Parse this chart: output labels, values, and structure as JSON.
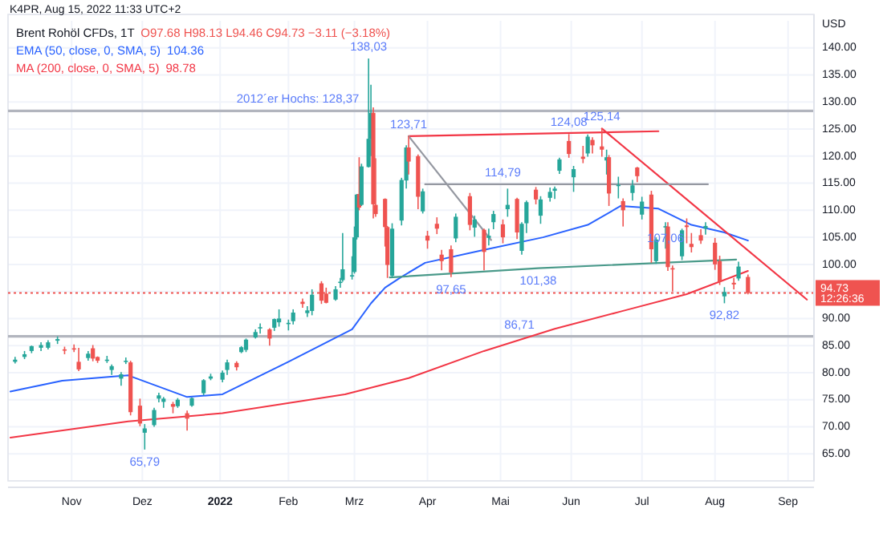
{
  "chart_data": {
    "type": "candlestick",
    "title": "Brent Rohöl CFDs, 1T",
    "subtitle": "K4PR, Aug 15, 2022 11:33 UTC+2",
    "ylabel": "USD",
    "x": [
      "2021-10-08",
      "2021-10-12",
      "2021-10-15",
      "2021-10-19",
      "2021-10-22",
      "2021-10-26",
      "2021-10-29",
      "2021-11-02",
      "2021-11-04",
      "2021-11-08",
      "2021-11-10",
      "2021-11-12",
      "2021-11-16",
      "2021-11-18",
      "2021-11-22",
      "2021-11-24",
      "2021-11-26",
      "2021-11-30",
      "2021-12-02",
      "2021-12-06",
      "2021-12-08",
      "2021-12-10",
      "2021-12-14",
      "2021-12-16",
      "2021-12-20",
      "2021-12-22",
      "2021-12-27",
      "2021-12-30",
      "2022-01-04",
      "2022-01-06",
      "2022-01-10",
      "2022-01-12",
      "2022-01-14",
      "2022-01-18",
      "2022-01-20",
      "2022-01-24",
      "2022-01-26",
      "2022-01-28",
      "2022-02-01",
      "2022-02-03",
      "2022-02-07",
      "2022-02-09",
      "2022-02-11",
      "2022-02-15",
      "2022-02-17",
      "2022-02-21",
      "2022-02-23",
      "2022-02-24",
      "2022-02-28",
      "2022-03-01",
      "2022-03-02",
      "2022-03-03",
      "2022-03-04",
      "2022-03-07",
      "2022-03-08",
      "2022-03-09",
      "2022-03-10",
      "2022-03-14",
      "2022-03-15",
      "2022-03-17",
      "2022-03-21",
      "2022-03-23",
      "2022-03-24",
      "2022-03-28",
      "2022-03-30",
      "2022-04-01",
      "2022-04-05",
      "2022-04-07",
      "2022-04-11",
      "2022-04-13",
      "2022-04-19",
      "2022-04-21",
      "2022-04-25",
      "2022-04-27",
      "2022-04-29",
      "2022-05-03",
      "2022-05-05",
      "2022-05-09",
      "2022-05-11",
      "2022-05-13",
      "2022-05-17",
      "2022-05-19",
      "2022-05-23",
      "2022-05-25",
      "2022-05-27",
      "2022-05-31",
      "2022-06-02",
      "2022-06-06",
      "2022-06-08",
      "2022-06-10",
      "2022-06-14",
      "2022-06-16",
      "2022-06-17",
      "2022-06-21",
      "2022-06-23",
      "2022-06-27",
      "2022-06-29",
      "2022-07-01",
      "2022-07-05",
      "2022-07-07",
      "2022-07-11",
      "2022-07-12",
      "2022-07-14",
      "2022-07-18",
      "2022-07-20",
      "2022-07-22",
      "2022-07-26",
      "2022-07-28",
      "2022-08-01",
      "2022-08-03",
      "2022-08-05",
      "2022-08-09",
      "2022-08-11",
      "2022-08-15"
    ],
    "ohlc": [
      [
        82.0,
        82.9,
        81.7,
        82.4
      ],
      [
        82.9,
        84.0,
        82.5,
        83.4
      ],
      [
        84.0,
        85.0,
        83.6,
        84.9
      ],
      [
        84.6,
        85.6,
        84.0,
        85.1
      ],
      [
        84.6,
        86.0,
        84.3,
        85.6
      ],
      [
        85.9,
        86.7,
        85.3,
        86.2
      ],
      [
        84.3,
        84.8,
        83.4,
        84.1
      ],
      [
        84.5,
        85.2,
        83.8,
        84.3
      ],
      [
        82.0,
        84.6,
        80.3,
        80.6
      ],
      [
        82.7,
        84.0,
        82.2,
        83.5
      ],
      [
        84.5,
        85.1,
        82.1,
        82.6
      ],
      [
        82.9,
        83.0,
        81.8,
        82.2
      ],
      [
        82.2,
        83.1,
        81.8,
        82.4
      ],
      [
        80.5,
        81.5,
        79.6,
        81.2
      ],
      [
        78.9,
        80.1,
        77.6,
        79.7
      ],
      [
        82.2,
        82.8,
        81.6,
        82.2
      ],
      [
        81.9,
        82.2,
        72.1,
        72.7
      ],
      [
        73.9,
        75.2,
        70.1,
        70.6
      ],
      [
        68.9,
        70.5,
        65.79,
        69.7
      ],
      [
        70.3,
        73.5,
        70.0,
        73.1
      ],
      [
        75.2,
        76.3,
        74.5,
        75.8
      ],
      [
        74.6,
        75.5,
        73.5,
        75.2
      ],
      [
        74.2,
        74.6,
        72.5,
        73.7
      ],
      [
        73.8,
        75.3,
        73.5,
        75.0
      ],
      [
        72.5,
        73.0,
        69.3,
        71.5
      ],
      [
        73.9,
        75.4,
        73.7,
        75.3
      ],
      [
        76.2,
        78.8,
        75.8,
        78.6
      ],
      [
        78.9,
        79.8,
        78.6,
        79.3
      ],
      [
        78.7,
        80.4,
        78.2,
        80.0
      ],
      [
        80.5,
        82.4,
        79.6,
        81.9
      ],
      [
        81.8,
        82.1,
        80.4,
        81.0
      ],
      [
        83.8,
        84.9,
        83.6,
        84.7
      ],
      [
        84.2,
        86.3,
        83.8,
        86.1
      ],
      [
        86.5,
        88.0,
        86.3,
        87.5
      ],
      [
        88.4,
        89.1,
        87.2,
        88.4
      ],
      [
        88.0,
        88.2,
        85.0,
        86.3
      ],
      [
        88.3,
        90.0,
        87.7,
        89.9
      ],
      [
        89.3,
        91.7,
        88.5,
        90.0
      ],
      [
        89.2,
        89.8,
        87.8,
        89.2
      ],
      [
        89.5,
        91.7,
        88.9,
        91.1
      ],
      [
        93.1,
        93.7,
        92.0,
        92.7
      ],
      [
        91.0,
        92.3,
        90.3,
        91.5
      ],
      [
        91.4,
        95.4,
        90.6,
        94.4
      ],
      [
        96.5,
        96.9,
        92.7,
        93.3
      ],
      [
        94.6,
        95.7,
        92.8,
        92.9
      ],
      [
        93.5,
        96.0,
        93.3,
        95.4
      ],
      [
        96.8,
        97.5,
        95.7,
        96.8
      ],
      [
        97.1,
        105.8,
        96.8,
        99.1
      ],
      [
        97.9,
        101.5,
        97.2,
        98.0
      ],
      [
        98.6,
        107.0,
        98.3,
        105.0
      ],
      [
        105.0,
        113.0,
        104.6,
        112.9
      ],
      [
        113.0,
        119.8,
        110.0,
        110.5
      ],
      [
        111.0,
        118.6,
        110.8,
        118.1
      ],
      [
        118.0,
        138.03,
        117.9,
        123.2
      ],
      [
        123.2,
        133.2,
        120.0,
        128.0
      ],
      [
        128.0,
        129.0,
        108.5,
        111.1
      ],
      [
        111.0,
        119.6,
        108.8,
        109.3
      ],
      [
        112.1,
        112.2,
        103.3,
        106.9
      ],
      [
        106.9,
        107.1,
        97.5,
        99.9
      ],
      [
        97.9,
        107.6,
        97.5,
        106.6
      ],
      [
        108.1,
        116.0,
        107.2,
        115.6
      ],
      [
        115.5,
        122.0,
        114.0,
        121.6
      ],
      [
        121.6,
        123.71,
        116.6,
        119.0
      ],
      [
        120.0,
        120.3,
        110.2,
        112.5
      ],
      [
        109.8,
        114.0,
        109.4,
        113.5
      ],
      [
        105.3,
        106.2,
        102.9,
        104.4
      ],
      [
        107.5,
        108.7,
        105.6,
        106.6
      ],
      [
        101.8,
        102.7,
        98.9,
        100.6
      ],
      [
        102.8,
        103.5,
        97.65,
        98.5
      ],
      [
        104.8,
        109.4,
        104.1,
        108.8
      ],
      [
        112.6,
        113.2,
        106.3,
        107.3
      ],
      [
        106.8,
        109.0,
        105.1,
        108.3
      ],
      [
        106.4,
        106.6,
        98.9,
        102.3
      ],
      [
        104.9,
        106.6,
        103.5,
        105.3
      ],
      [
        107.8,
        109.9,
        106.5,
        109.3
      ],
      [
        107.4,
        108.3,
        103.9,
        105.0
      ],
      [
        110.2,
        114.0,
        108.8,
        111.0
      ],
      [
        112.1,
        112.3,
        104.7,
        105.9
      ],
      [
        102.5,
        107.8,
        101.8,
        107.5
      ],
      [
        107.6,
        111.8,
        105.8,
        111.5
      ],
      [
        113.8,
        114.3,
        111.1,
        112.0
      ],
      [
        109.0,
        112.6,
        107.5,
        112.0
      ],
      [
        112.3,
        114.2,
        111.6,
        113.4
      ],
      [
        113.6,
        114.4,
        112.1,
        114.0
      ],
      [
        117.3,
        119.7,
        116.7,
        119.4
      ],
      [
        122.8,
        124.08,
        119.7,
        120.4
      ],
      [
        116.1,
        118.2,
        113.4,
        117.6
      ],
      [
        119.9,
        121.9,
        118.7,
        119.5
      ],
      [
        120.5,
        124.0,
        119.9,
        123.6
      ],
      [
        123.0,
        123.5,
        120.5,
        122.0
      ],
      [
        121.8,
        125.14,
        119.9,
        121.2
      ],
      [
        119.2,
        121.2,
        116.6,
        119.8
      ],
      [
        119.8,
        120.2,
        110.8,
        113.1
      ],
      [
        114.5,
        116.2,
        112.2,
        114.7
      ],
      [
        111.7,
        112.2,
        107.0,
        110.0
      ],
      [
        113.2,
        115.6,
        111.8,
        114.6
      ],
      [
        117.9,
        118.0,
        115.2,
        116.3
      ],
      [
        109.2,
        112.5,
        108.3,
        111.6
      ],
      [
        112.9,
        113.6,
        100.3,
        102.8
      ],
      [
        100.6,
        105.0,
        100.1,
        104.6
      ],
      [
        107.0,
        107.8,
        102.9,
        107.06
      ],
      [
        107.0,
        107.8,
        98.8,
        99.5
      ],
      [
        99.3,
        99.8,
        95.0,
        99.1
      ],
      [
        101.5,
        106.6,
        100.8,
        106.3
      ],
      [
        107.2,
        108.5,
        103.9,
        106.9
      ],
      [
        103.8,
        105.8,
        102.2,
        103.2
      ],
      [
        105.4,
        106.5,
        103.8,
        104.4
      ],
      [
        106.6,
        107.8,
        105.5,
        107.1
      ],
      [
        104.0,
        104.9,
        99.0,
        100.0
      ],
      [
        100.6,
        101.6,
        96.2,
        96.8
      ],
      [
        94.1,
        95.8,
        92.82,
        94.9
      ],
      [
        96.6,
        97.5,
        95.4,
        96.3
      ],
      [
        97.4,
        100.5,
        97.0,
        99.6
      ],
      [
        97.68,
        98.13,
        94.46,
        94.73
      ]
    ],
    "series": [
      {
        "name": "EMA (50, close, 0, SMA, 5)",
        "type": "line",
        "color": "#2962ff",
        "x": [
          "2021-10-06",
          "2021-10-28",
          "2021-11-25",
          "2021-12-20",
          "2022-01-04",
          "2022-02-01",
          "2022-02-28",
          "2022-03-08",
          "2022-03-14",
          "2022-03-21",
          "2022-03-31",
          "2022-04-25",
          "2022-05-20",
          "2022-06-08",
          "2022-06-22",
          "2022-07-08",
          "2022-07-22",
          "2022-08-05",
          "2022-08-15"
        ],
        "values": [
          76.5,
          78.5,
          79.5,
          75.5,
          76.0,
          82.0,
          88.0,
          92.8,
          95.7,
          97.7,
          100.3,
          102.7,
          105.0,
          107.3,
          110.8,
          110.3,
          107.3,
          105.9,
          104.4
        ]
      },
      {
        "name": "MA (200, close, 0, SMA, 5)",
        "type": "line",
        "color": "#f23645",
        "x": [
          "2021-10-06",
          "2021-11-25",
          "2022-01-04",
          "2022-02-25",
          "2022-03-24",
          "2022-04-25",
          "2022-05-25",
          "2022-06-22",
          "2022-07-20",
          "2022-08-15"
        ],
        "values": [
          68.0,
          71.0,
          72.5,
          76.0,
          79.0,
          84.0,
          88.1,
          91.3,
          94.5,
          98.8
        ]
      },
      {
        "type": "line",
        "color": "#f23645",
        "x": [
          "2022-03-24",
          "2022-07-08"
        ],
        "values": [
          123.7,
          124.6
        ]
      },
      {
        "type": "line",
        "color": "#f23645",
        "x": [
          "2022-06-14",
          "2022-09-09"
        ],
        "values": [
          125.1,
          93.5
        ]
      },
      {
        "type": "line",
        "color": "#4a9a8a",
        "x": [
          "2022-03-16",
          "2022-05-18",
          "2022-08-10"
        ],
        "values": [
          97.6,
          99.3,
          100.9
        ]
      },
      {
        "type": "line",
        "color": "#9598a1",
        "x": [
          "2022-03-24",
          "2022-04-28"
        ],
        "values": [
          123.7,
          104.5
        ]
      },
      {
        "type": "line",
        "color": "#9598a1",
        "x": [
          "2022-03-31",
          "2022-07-29"
        ],
        "values": [
          114.8,
          114.8
        ]
      }
    ],
    "xlim": [
      "2021-10-05",
      "2022-09-12"
    ],
    "xticks": [
      {
        "value": "2021-11-01",
        "label": "Nov"
      },
      {
        "value": "2021-12-01",
        "label": "Dez"
      },
      {
        "value": "2022-01-03",
        "label": "2022"
      },
      {
        "value": "2022-02-01",
        "label": "Feb"
      },
      {
        "value": "2022-03-01",
        "label": "Mrz"
      },
      {
        "value": "2022-04-01",
        "label": "Apr"
      },
      {
        "value": "2022-05-02",
        "label": "Mai"
      },
      {
        "value": "2022-06-01",
        "label": "Jun"
      },
      {
        "value": "2022-07-01",
        "label": "Jul"
      },
      {
        "value": "2022-08-01",
        "label": "Aug"
      },
      {
        "value": "2022-09-01",
        "label": "Sep"
      }
    ],
    "ylim": [
      60,
      145
    ],
    "yticks": [
      {
        "value": 65,
        "label": "65.00"
      },
      {
        "value": 70,
        "label": "70.00"
      },
      {
        "value": 75,
        "label": "75.00"
      },
      {
        "value": 80,
        "label": "80.00"
      },
      {
        "value": 85,
        "label": "85.00"
      },
      {
        "value": 90,
        "label": "90.00"
      },
      {
        "value": 95,
        "label": null
      },
      {
        "value": 100,
        "label": "100.00"
      },
      {
        "value": 105,
        "label": "105.00"
      },
      {
        "value": 110,
        "label": "110.00"
      },
      {
        "value": 115,
        "label": "115.00"
      },
      {
        "value": 120,
        "label": "120.00"
      },
      {
        "value": 125,
        "label": "125.00"
      },
      {
        "value": 130,
        "label": "130.00"
      },
      {
        "value": 135,
        "label": "135.00"
      },
      {
        "value": 140,
        "label": "140.00"
      }
    ],
    "ref_lines": [
      {
        "axis": "y",
        "value": 128.37,
        "color": "#b2b5be",
        "line_style": "solid"
      },
      {
        "axis": "y",
        "value": 86.71,
        "color": "#b2b5be",
        "line_style": "solid"
      },
      {
        "axis": "y",
        "value": 94.73,
        "color": "#ef5350",
        "line_style": "dotted",
        "label": "94.73"
      }
    ],
    "annotations": [
      "O97.68 H98.13 L94.46 C94.73 −3.11 (−3.18%)",
      "12:26:36",
      "104.36",
      "98.78",
      {
        "text": "138,03",
        "x": "2022-03-07",
        "y": 138.03
      },
      {
        "text": "2012´er Hochs: 128,37",
        "x": "2022-02-05",
        "y": 128.37
      },
      {
        "text": "123,71",
        "x": "2022-03-24",
        "y": 123.71
      },
      {
        "text": "124,08",
        "x": "2022-05-31",
        "y": 124.08
      },
      {
        "text": "125,14",
        "x": "2022-06-14",
        "y": 125.14
      },
      {
        "text": "114,79",
        "x": "2022-05-03",
        "y": 114.8
      },
      {
        "text": "107,06",
        "x": "2022-07-11",
        "y": 107.06
      },
      {
        "text": "101,38",
        "x": "2022-05-18",
        "y": 99.3
      },
      {
        "text": "97,65",
        "x": "2022-04-11",
        "y": 97.65
      },
      {
        "text": "92,82",
        "x": "2022-08-05",
        "y": 92.82
      },
      {
        "text": "86,71",
        "x": "2022-05-10",
        "y": 86.71
      },
      {
        "text": "65,79",
        "x": "2021-12-02",
        "y": 65.79
      }
    ],
    "grid": true,
    "legend": "top left"
  }
}
